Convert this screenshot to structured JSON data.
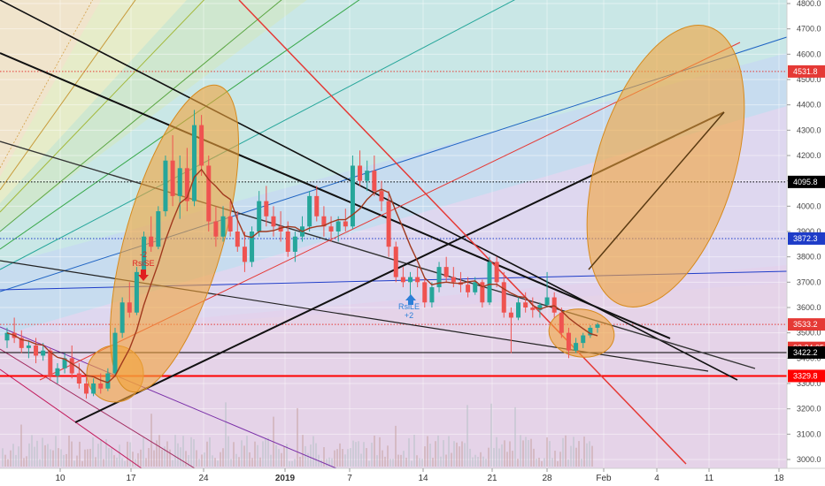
{
  "chart_data": {
    "type": "candlestick",
    "instrument": "BTC",
    "x_tick_labels": [
      "10",
      "17",
      "24",
      "2019",
      "7",
      "14",
      "21",
      "28",
      "Feb",
      "4",
      "11",
      "18"
    ],
    "y_tick_labels": [
      "3000.0",
      "3100.0",
      "3200.0",
      "3300.0",
      "3400.0",
      "3500.0",
      "3600.0",
      "3700.0",
      "3800.0",
      "3900.0",
      "4000.0",
      "4100.0",
      "4200.0",
      "4300.0",
      "4400.0",
      "4500.0",
      "4600.0",
      "4700.0",
      "4800.0"
    ],
    "ylim": [
      2990,
      4820
    ],
    "price_levels": [
      {
        "label": "4531.8",
        "value": 4531.8,
        "color": "#e53935",
        "style": "dotted"
      },
      {
        "label": "4095.8",
        "value": 4095.8,
        "color": "#000000",
        "style": "dotted"
      },
      {
        "label": "3872.3",
        "value": 3872.3,
        "color": "#1e3cc8",
        "style": "dotted"
      },
      {
        "label": "3533.2",
        "value": 3533.2,
        "color": "#e53935",
        "style": "dotted"
      },
      {
        "label": "03:24:05",
        "value": 3500,
        "color": "#e53935",
        "style": "none"
      },
      {
        "label": "3422.2",
        "value": 3422.2,
        "color": "#000000",
        "style": "solid"
      },
      {
        "label": "3329.8",
        "value": 3329.8,
        "color": "#ff0000",
        "style": "solid-thick"
      }
    ],
    "annotations": [
      {
        "lines": [
          "-2",
          "RsiSE"
        ],
        "direction": "down",
        "color": "#e02020"
      },
      {
        "lines": [
          "RsiLE",
          "+2"
        ],
        "direction": "up",
        "color": "#2c7fd8"
      }
    ],
    "candles": [
      [
        3470,
        3520,
        3440,
        3500
      ],
      [
        3500,
        3560,
        3460,
        3480
      ],
      [
        3480,
        3510,
        3420,
        3440
      ],
      [
        3440,
        3470,
        3400,
        3450
      ],
      [
        3450,
        3480,
        3380,
        3410
      ],
      [
        3410,
        3460,
        3390,
        3430
      ],
      [
        3430,
        3440,
        3310,
        3330
      ],
      [
        3330,
        3380,
        3300,
        3360
      ],
      [
        3360,
        3420,
        3340,
        3400
      ],
      [
        3400,
        3450,
        3320,
        3340
      ],
      [
        3340,
        3380,
        3280,
        3300
      ],
      [
        3300,
        3330,
        3240,
        3260
      ],
      [
        3260,
        3320,
        3250,
        3300
      ],
      [
        3300,
        3340,
        3260,
        3280
      ],
      [
        3280,
        3360,
        3270,
        3340
      ],
      [
        3340,
        3520,
        3330,
        3500
      ],
      [
        3500,
        3640,
        3480,
        3620
      ],
      [
        3620,
        3700,
        3560,
        3580
      ],
      [
        3580,
        3760,
        3570,
        3740
      ],
      [
        3740,
        3900,
        3720,
        3880
      ],
      [
        3880,
        3960,
        3820,
        3840
      ],
      [
        3840,
        4000,
        3830,
        3980
      ],
      [
        3980,
        4200,
        3960,
        4180
      ],
      [
        4180,
        4280,
        4000,
        4040
      ],
      [
        4040,
        4200,
        3950,
        4150
      ],
      [
        4150,
        4230,
        3980,
        4020
      ],
      [
        4020,
        4380,
        4000,
        4320
      ],
      [
        4320,
        4360,
        4120,
        4160
      ],
      [
        4160,
        4200,
        3900,
        3940
      ],
      [
        3940,
        4000,
        3840,
        3880
      ],
      [
        3880,
        4000,
        3860,
        3960
      ],
      [
        3960,
        4020,
        3880,
        3900
      ],
      [
        3900,
        3980,
        3820,
        3840
      ],
      [
        3840,
        3900,
        3740,
        3780
      ],
      [
        3780,
        3920,
        3760,
        3900
      ],
      [
        3900,
        4060,
        3880,
        4020
      ],
      [
        4020,
        4080,
        3920,
        3960
      ],
      [
        3960,
        4000,
        3880,
        3920
      ],
      [
        3920,
        3980,
        3860,
        3900
      ],
      [
        3900,
        3940,
        3800,
        3820
      ],
      [
        3820,
        3900,
        3780,
        3880
      ],
      [
        3880,
        3960,
        3860,
        3920
      ],
      [
        3920,
        4060,
        3900,
        4040
      ],
      [
        4040,
        4080,
        3940,
        3960
      ],
      [
        3960,
        4000,
        3880,
        3920
      ],
      [
        3920,
        3960,
        3860,
        3900
      ],
      [
        3900,
        3960,
        3860,
        3940
      ],
      [
        3940,
        3990,
        3900,
        3920
      ],
      [
        3920,
        4200,
        3910,
        4160
      ],
      [
        4160,
        4220,
        4080,
        4100
      ],
      [
        4100,
        4180,
        4060,
        4140
      ],
      [
        4140,
        4200,
        4040,
        4060
      ],
      [
        4060,
        4100,
        3980,
        4020
      ],
      [
        4020,
        4060,
        3800,
        3840
      ],
      [
        3840,
        3860,
        3700,
        3720
      ],
      [
        3720,
        3760,
        3680,
        3700
      ],
      [
        3700,
        3740,
        3650,
        3720
      ],
      [
        3720,
        3760,
        3680,
        3700
      ],
      [
        3700,
        3720,
        3600,
        3620
      ],
      [
        3620,
        3700,
        3600,
        3680
      ],
      [
        3680,
        3780,
        3660,
        3760
      ],
      [
        3760,
        3800,
        3700,
        3720
      ],
      [
        3720,
        3760,
        3680,
        3700
      ],
      [
        3700,
        3740,
        3660,
        3690
      ],
      [
        3690,
        3720,
        3640,
        3660
      ],
      [
        3660,
        3720,
        3650,
        3700
      ],
      [
        3700,
        3710,
        3600,
        3620
      ],
      [
        3620,
        3800,
        3610,
        3780
      ],
      [
        3780,
        3800,
        3680,
        3700
      ],
      [
        3700,
        3740,
        3560,
        3580
      ],
      [
        3580,
        3600,
        3420,
        3560
      ],
      [
        3560,
        3640,
        3550,
        3620
      ],
      [
        3620,
        3660,
        3580,
        3600
      ],
      [
        3600,
        3640,
        3560,
        3590
      ],
      [
        3590,
        3620,
        3560,
        3610
      ],
      [
        3610,
        3740,
        3600,
        3640
      ],
      [
        3640,
        3660,
        3560,
        3580
      ],
      [
        3580,
        3600,
        3480,
        3500
      ],
      [
        3500,
        3520,
        3400,
        3430
      ],
      [
        3430,
        3480,
        3420,
        3460
      ],
      [
        3460,
        3500,
        3440,
        3490
      ],
      [
        3490,
        3530,
        3480,
        3520
      ],
      [
        3520,
        3540,
        3500,
        3533
      ]
    ]
  }
}
